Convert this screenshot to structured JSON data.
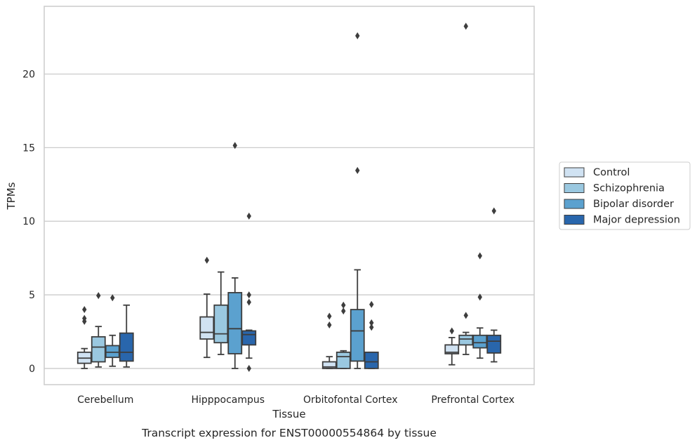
{
  "caption": "Transcript expression for ENST00000554864 by tissue",
  "chart_data": {
    "type": "box",
    "xlabel": "Tissue",
    "ylabel": "TPMs",
    "ylim": [
      -1.1,
      24.6
    ],
    "yticks": [
      0,
      5,
      10,
      15,
      20
    ],
    "grid": "horizontal",
    "legend_position": "right",
    "categories": [
      "Cerebellum",
      "Hipppocampus",
      "Orbitofontal Cortex",
      "Prefrontal Cortex"
    ],
    "series": [
      {
        "name": "Control",
        "color": "#d0e2f2",
        "boxes": [
          {
            "whislo": 0.0,
            "q1": 0.35,
            "med": 0.7,
            "q3": 1.1,
            "whishi": 1.35,
            "fliers": [
              4.0,
              3.4,
              3.2
            ]
          },
          {
            "whislo": 0.75,
            "q1": 2.0,
            "med": 2.45,
            "q3": 3.5,
            "whishi": 5.05,
            "fliers": [
              7.35
            ]
          },
          {
            "whislo": 0.0,
            "q1": 0.0,
            "med": 0.1,
            "q3": 0.45,
            "whishi": 0.8,
            "fliers": [
              3.55,
              2.95
            ]
          },
          {
            "whislo": 0.25,
            "q1": 1.0,
            "med": 1.1,
            "q3": 1.6,
            "whishi": 2.1,
            "fliers": [
              2.55
            ]
          }
        ]
      },
      {
        "name": "Schizophrenia",
        "color": "#9ac8e0",
        "boxes": [
          {
            "whislo": 0.1,
            "q1": 0.45,
            "med": 1.45,
            "q3": 2.15,
            "whishi": 2.85,
            "fliers": [
              4.95
            ]
          },
          {
            "whislo": 0.95,
            "q1": 1.75,
            "med": 2.35,
            "q3": 4.3,
            "whishi": 6.55,
            "fliers": []
          },
          {
            "whislo": 0.0,
            "q1": 0.0,
            "med": 0.8,
            "q3": 1.1,
            "whishi": 1.2,
            "fliers": [
              4.3,
              3.9
            ]
          },
          {
            "whislo": 0.95,
            "q1": 1.6,
            "med": 2.0,
            "q3": 2.25,
            "whishi": 2.45,
            "fliers": [
              3.6,
              23.25
            ]
          }
        ]
      },
      {
        "name": "Bipolar disorder",
        "color": "#5ba1cf",
        "boxes": [
          {
            "whislo": 0.15,
            "q1": 0.75,
            "med": 1.1,
            "q3": 1.55,
            "whishi": 2.25,
            "fliers": [
              4.8
            ]
          },
          {
            "whislo": 0.0,
            "q1": 1.0,
            "med": 2.7,
            "q3": 5.15,
            "whishi": 6.15,
            "fliers": [
              15.15
            ]
          },
          {
            "whislo": 0.0,
            "q1": 0.5,
            "med": 2.55,
            "q3": 4.0,
            "whishi": 6.7,
            "fliers": [
              13.45,
              22.6
            ]
          },
          {
            "whislo": 0.7,
            "q1": 1.4,
            "med": 1.75,
            "q3": 2.25,
            "whishi": 2.75,
            "fliers": [
              4.85,
              7.65
            ]
          }
        ]
      },
      {
        "name": "Major depression",
        "color": "#2966ac",
        "boxes": [
          {
            "whislo": 0.1,
            "q1": 0.5,
            "med": 1.1,
            "q3": 2.4,
            "whishi": 4.3,
            "fliers": []
          },
          {
            "whislo": 0.7,
            "q1": 1.6,
            "med": 2.3,
            "q3": 2.55,
            "whishi": 2.6,
            "fliers": [
              10.35,
              5.0,
              4.5,
              0.0
            ]
          },
          {
            "whislo": 0.0,
            "q1": 0.0,
            "med": 0.45,
            "q3": 1.1,
            "whishi": 1.1,
            "fliers": [
              4.35,
              3.1,
              2.8
            ]
          },
          {
            "whislo": 0.45,
            "q1": 1.05,
            "med": 1.85,
            "q3": 2.25,
            "whishi": 2.6,
            "fliers": [
              10.7
            ]
          }
        ]
      }
    ]
  }
}
